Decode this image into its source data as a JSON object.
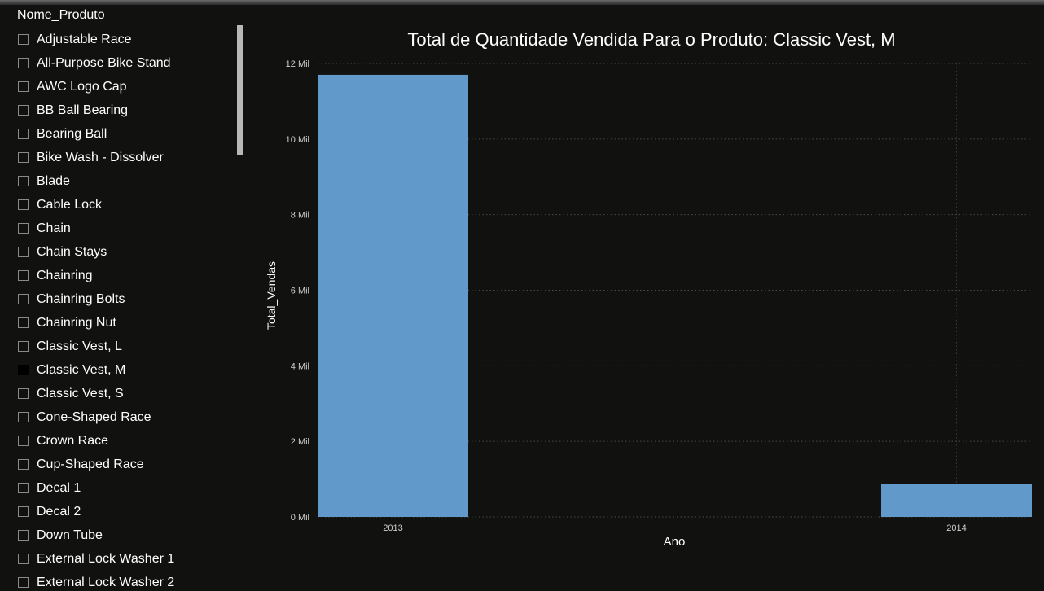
{
  "slicer": {
    "header": "Nome_Produto",
    "items": [
      {
        "label": "Adjustable Race",
        "checked": false
      },
      {
        "label": "All-Purpose Bike Stand",
        "checked": false
      },
      {
        "label": "AWC Logo Cap",
        "checked": false
      },
      {
        "label": "BB Ball Bearing",
        "checked": false
      },
      {
        "label": "Bearing Ball",
        "checked": false
      },
      {
        "label": "Bike Wash - Dissolver",
        "checked": false
      },
      {
        "label": "Blade",
        "checked": false
      },
      {
        "label": "Cable Lock",
        "checked": false
      },
      {
        "label": "Chain",
        "checked": false
      },
      {
        "label": "Chain Stays",
        "checked": false
      },
      {
        "label": "Chainring",
        "checked": false
      },
      {
        "label": "Chainring Bolts",
        "checked": false
      },
      {
        "label": "Chainring Nut",
        "checked": false
      },
      {
        "label": "Classic Vest, L",
        "checked": false
      },
      {
        "label": "Classic Vest, M",
        "checked": true
      },
      {
        "label": "Classic Vest, S",
        "checked": false
      },
      {
        "label": "Cone-Shaped Race",
        "checked": false
      },
      {
        "label": "Crown Race",
        "checked": false
      },
      {
        "label": "Cup-Shaped Race",
        "checked": false
      },
      {
        "label": "Decal 1",
        "checked": false
      },
      {
        "label": "Decal 2",
        "checked": false
      },
      {
        "label": "Down Tube",
        "checked": false
      },
      {
        "label": "External Lock Washer 1",
        "checked": false
      },
      {
        "label": "External Lock Washer 2",
        "checked": false
      }
    ]
  },
  "chart_data": {
    "type": "bar",
    "title": "Total de Quantidade Vendida Para o Produto: Classic Vest, M",
    "xlabel": "Ano",
    "ylabel": "Total_Vendas",
    "categories": [
      "2013",
      "2014"
    ],
    "values": [
      11700,
      870
    ],
    "ylim": [
      0,
      12000
    ],
    "yticks": [
      0,
      2000,
      4000,
      6000,
      8000,
      10000,
      12000
    ],
    "ytick_labels": [
      "0 Mil",
      "2 Mil",
      "4 Mil",
      "6 Mil",
      "8 Mil",
      "10 Mil",
      "12 Mil"
    ],
    "bar_color": "#6299cb",
    "grid": true
  }
}
